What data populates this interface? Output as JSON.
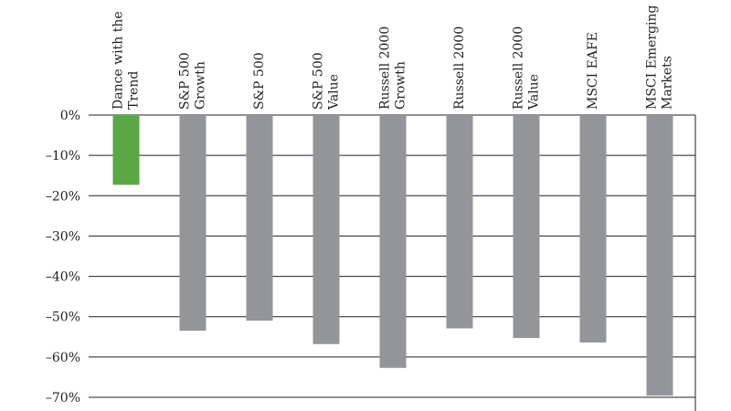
{
  "chart_data": {
    "type": "bar",
    "orientation": "vertical",
    "categories": [
      "Dance with the Trend",
      "S&P 500 Growth",
      "S&P 500",
      "S&P 500 Value",
      "Russell 2000 Growth",
      "Russell 2000",
      "Russell 2000 Value",
      "MSCI EAFE",
      "MSCI Emerging Markets"
    ],
    "category_label_lines": [
      [
        "Dance with the",
        "Trend"
      ],
      [
        "S&P 500",
        "Growth"
      ],
      [
        "S&P 500"
      ],
      [
        "S&P 500",
        "Value"
      ],
      [
        "Russell 2000",
        "Growth"
      ],
      [
        "Russell 2000"
      ],
      [
        "Russell 2000",
        "Value"
      ],
      [
        "MSCI EAFE"
      ],
      [
        "MSCI Emerging",
        "Markets"
      ]
    ],
    "values": [
      -17.3,
      -53.5,
      -51.0,
      -56.8,
      -62.7,
      -52.9,
      -55.3,
      -56.4,
      -69.6
    ],
    "bar_colors": [
      "#5aa845",
      "#939598",
      "#939598",
      "#939598",
      "#939598",
      "#939598",
      "#939598",
      "#939598",
      "#939598"
    ],
    "ylim": [
      -70,
      0
    ],
    "yticks": [
      0,
      -10,
      -20,
      -30,
      -40,
      -50,
      -60,
      -70
    ],
    "ytick_labels": [
      "0%",
      "–10%",
      "–20%",
      "–30%",
      "–40%",
      "–50%",
      "–60%",
      "–70%"
    ],
    "grid": true,
    "category_labels_position": "top, rotated vertical",
    "title": "",
    "xlabel": "",
    "ylabel": ""
  },
  "colors": {
    "highlight_bar": "#5aa845",
    "bar": "#939598",
    "grid": "#231f20",
    "text": "#231f20"
  }
}
